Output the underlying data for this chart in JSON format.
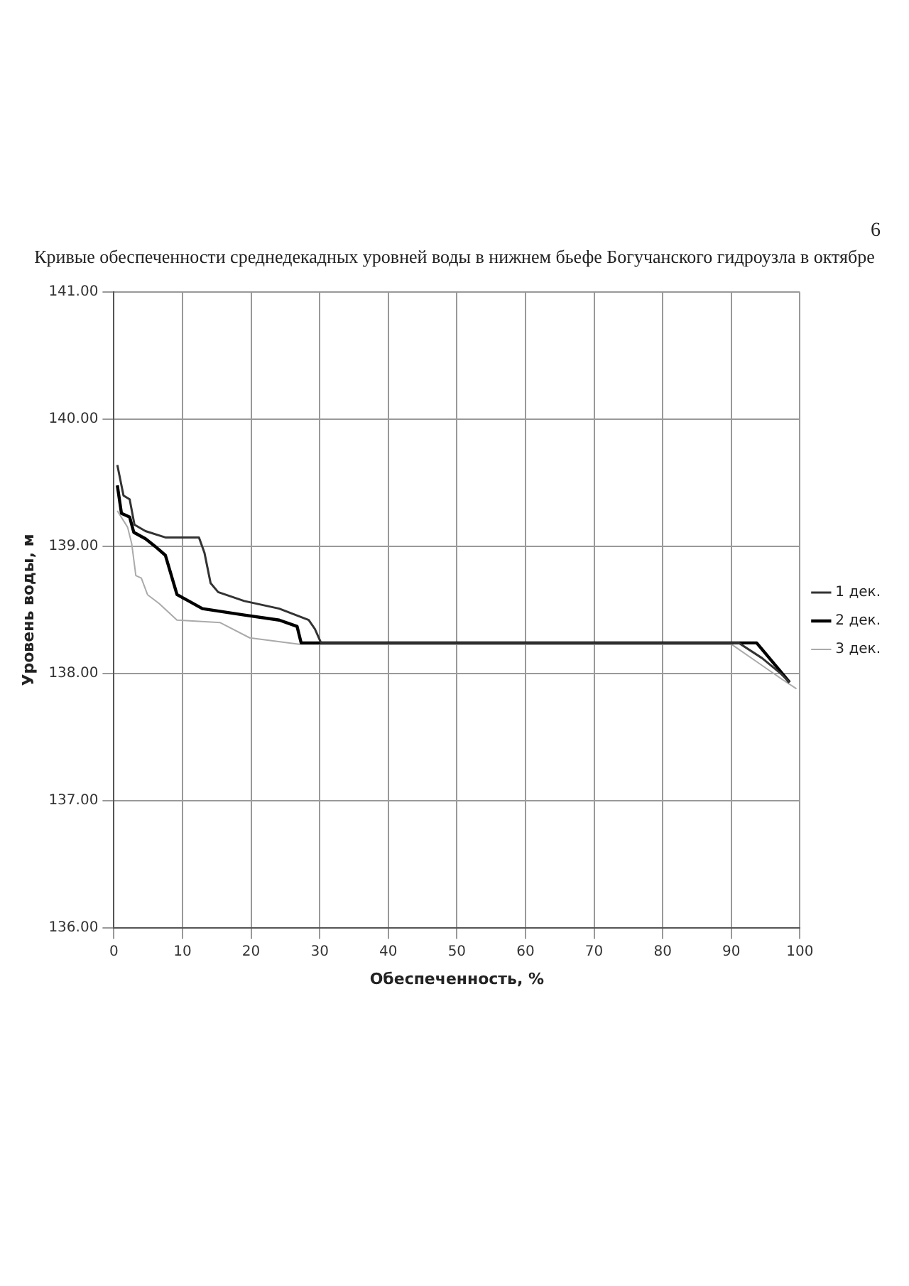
{
  "chart_data": {
    "type": "line",
    "title": "Кривые обеспеченности среднедекадных уровней воды в нижнем бьефе Богучанского гидроузла в октябре",
    "xlabel": "Обеспеченность, %",
    "ylabel": "Уровень воды, м",
    "annotations": [
      "6"
    ],
    "xlim": [
      0,
      100
    ],
    "xticks": [
      0,
      10,
      20,
      30,
      40,
      50,
      60,
      70,
      80,
      90,
      100
    ],
    "ylim": [
      136,
      141
    ],
    "yticks": [
      {
        "value": 136,
        "label": "136.00"
      },
      {
        "value": 137,
        "label": "137.00"
      },
      {
        "value": 138,
        "label": "138.00"
      },
      {
        "value": 139,
        "label": "139.00"
      },
      {
        "value": 140,
        "label": "140.00"
      },
      {
        "value": 141,
        "label": "141.00"
      }
    ],
    "grid": true,
    "legend": "right",
    "marker": "none",
    "line_style": "solid",
    "series": [
      {
        "name": "1 дек.",
        "color": "#333333",
        "x": [
          0.5,
          1.4,
          2.3,
          3.0,
          4.6,
          7.5,
          12.4,
          13.2,
          14.1,
          15.2,
          19.0,
          24.1,
          28.4,
          29.3,
          30.2,
          91.1,
          94.5,
          97.2,
          98.5
        ],
        "values": [
          139.64,
          139.4,
          139.37,
          139.17,
          139.12,
          139.07,
          139.07,
          138.95,
          138.71,
          138.64,
          138.57,
          138.51,
          138.42,
          138.35,
          138.24,
          138.24,
          138.12,
          138.0,
          137.93
        ]
      },
      {
        "name": "2 дек.",
        "color": "#000000",
        "x": [
          0.5,
          1.1,
          2.3,
          2.9,
          4.6,
          6.0,
          7.5,
          9.2,
          10.9,
          12.9,
          19.0,
          24.1,
          26.7,
          27.3,
          93.7,
          96.8,
          98.5
        ],
        "values": [
          139.48,
          139.26,
          139.23,
          139.11,
          139.06,
          139.0,
          138.93,
          138.62,
          138.57,
          138.51,
          138.46,
          138.42,
          138.37,
          138.24,
          138.24,
          138.04,
          137.93
        ]
      },
      {
        "name": "3 дек.",
        "color": "#aaaaaa",
        "x": [
          0.5,
          2.0,
          2.6,
          3.2,
          4.0,
          4.9,
          6.6,
          9.2,
          15.5,
          19.8,
          27.0,
          90.0,
          93.5,
          97.5,
          99.5
        ],
        "values": [
          139.28,
          139.15,
          139.02,
          138.77,
          138.75,
          138.62,
          138.55,
          138.42,
          138.4,
          138.28,
          138.23,
          138.23,
          138.1,
          137.95,
          137.88
        ]
      }
    ]
  }
}
